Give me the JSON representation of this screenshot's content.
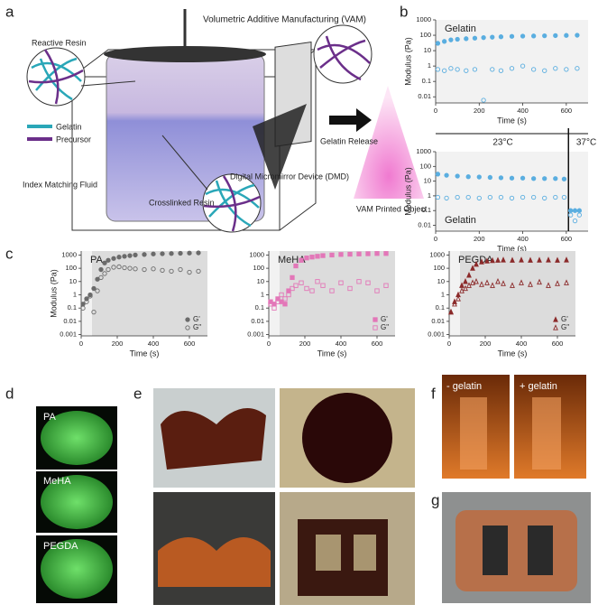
{
  "figure": {
    "panel_labels": [
      "a",
      "b",
      "c",
      "d",
      "e",
      "f",
      "g"
    ],
    "a": {
      "title": "Volumetric Additive Manufacturing (VAM)",
      "reactive_resin": "Reactive Resin",
      "gelatin": "Gelatin",
      "precursor": "Precursor",
      "index_fluid": "Index Matching Fluid",
      "crosslinked": "Crosslinked Resin",
      "dmd": "Digital Micromirror Device (DMD)",
      "release": "Gelatin Release",
      "printed": "VAM Printed Object"
    },
    "d": {
      "labels": [
        "PA",
        "MeHA",
        "PEGDA"
      ]
    },
    "f": {
      "labels": [
        "- gelatin",
        "+ gelatin"
      ]
    }
  },
  "chart_data": [
    {
      "type": "scatter",
      "title": "Gelatin",
      "xlabel": "Time (s)",
      "ylabel": "Modulus (Pa)",
      "log_y": true,
      "xlim": [
        0,
        700
      ],
      "xticks": [
        0,
        200,
        400,
        600
      ],
      "ylim": [
        0.004,
        1000
      ],
      "yticks": [
        0.01,
        0.1,
        1,
        10,
        100,
        1000
      ],
      "x": [
        10,
        40,
        70,
        100,
        140,
        180,
        220,
        260,
        300,
        350,
        400,
        450,
        500,
        550,
        600,
        650
      ],
      "series": [
        {
          "name": "G'",
          "color": "#5aaee0",
          "marker": "circle",
          "filled": true,
          "values": [
            30,
            40,
            50,
            55,
            60,
            65,
            70,
            75,
            80,
            85,
            88,
            90,
            92,
            95,
            98,
            100
          ]
        },
        {
          "name": "G''",
          "color": "#5aaee0",
          "marker": "circle",
          "filled": false,
          "values": [
            0.6,
            0.5,
            0.7,
            0.6,
            0.5,
            0.6,
            0.006,
            0.6,
            0.5,
            0.7,
            1,
            0.6,
            0.5,
            0.7,
            0.6,
            0.7
          ]
        }
      ]
    },
    {
      "type": "scatter",
      "title": "Gelatin",
      "xlabel": "Time (s)",
      "ylabel": "Modulus (Pa)",
      "log_y": true,
      "xlim": [
        0,
        700
      ],
      "xticks": [
        0,
        200,
        400,
        600
      ],
      "ylim": [
        0.004,
        1000
      ],
      "yticks": [
        0.01,
        0.1,
        1,
        10,
        100,
        1000
      ],
      "annotations": [
        "23°C",
        "37°C"
      ],
      "vline": 610,
      "x": [
        10,
        50,
        100,
        150,
        200,
        250,
        300,
        350,
        400,
        450,
        500,
        550,
        590,
        620,
        640,
        660
      ],
      "series": [
        {
          "name": "G'",
          "color": "#5aaee0",
          "marker": "circle",
          "filled": true,
          "values": [
            30,
            25,
            22,
            20,
            19,
            18,
            17,
            16,
            16,
            15,
            15,
            15,
            14,
            0.1,
            0.1,
            0.1
          ]
        },
        {
          "name": "G''",
          "color": "#5aaee0",
          "marker": "circle",
          "filled": false,
          "values": [
            0.8,
            0.7,
            0.8,
            0.8,
            0.7,
            0.8,
            0.8,
            0.7,
            0.8,
            0.8,
            0.7,
            0.8,
            0.8,
            0.05,
            0.02,
            0.05
          ]
        }
      ]
    },
    {
      "type": "scatter",
      "title": "PA",
      "xlabel": "Time (s)",
      "ylabel": "Modulus (Pa)",
      "log_y": true,
      "legend": "lower right",
      "shaded_xlim": [
        60,
        700
      ],
      "xlim": [
        0,
        700
      ],
      "xticks": [
        0,
        200,
        400,
        600
      ],
      "ylim": [
        0.0008,
        2000
      ],
      "yticks": [
        0.001,
        0.01,
        0.1,
        1,
        10,
        100,
        1000
      ],
      "x": [
        10,
        30,
        50,
        70,
        90,
        110,
        130,
        150,
        180,
        210,
        240,
        270,
        300,
        350,
        400,
        450,
        500,
        550,
        600,
        650
      ],
      "series": [
        {
          "name": "G'",
          "color": "#6b6b6b",
          "marker": "circle",
          "filled": true,
          "values": [
            0.2,
            0.5,
            1,
            3,
            15,
            80,
            250,
            400,
            550,
            700,
            800,
            900,
            1000,
            1100,
            1200,
            1250,
            1300,
            1350,
            1400,
            1450
          ]
        },
        {
          "name": "G\"",
          "color": "#6b6b6b",
          "marker": "circle",
          "filled": false,
          "values": [
            0.1,
            0.3,
            0.8,
            0.05,
            2,
            20,
            40,
            80,
            120,
            130,
            110,
            100,
            90,
            80,
            90,
            70,
            60,
            80,
            50,
            60
          ]
        }
      ]
    },
    {
      "type": "scatter",
      "title": "MeHA",
      "xlabel": "Time (s)",
      "log_y": true,
      "legend": "lower right",
      "shaded_xlim": [
        60,
        700
      ],
      "xlim": [
        0,
        700
      ],
      "xticks": [
        0,
        200,
        400,
        600
      ],
      "ylim": [
        0.0008,
        2000
      ],
      "yticks": [
        0.001,
        0.01,
        0.1,
        1,
        10,
        100,
        1000
      ],
      "x": [
        10,
        30,
        50,
        70,
        90,
        110,
        130,
        150,
        180,
        210,
        240,
        270,
        300,
        350,
        400,
        450,
        500,
        550,
        600,
        650
      ],
      "series": [
        {
          "name": "G'",
          "color": "#e377b8",
          "marker": "square",
          "filled": true,
          "values": [
            0.3,
            0.2,
            0.5,
            0.3,
            0.2,
            2,
            20,
            150,
            400,
            600,
            700,
            800,
            900,
            1000,
            1100,
            1150,
            1200,
            1250,
            1300,
            1300
          ]
        },
        {
          "name": "G\"",
          "color": "#e377b8",
          "marker": "square",
          "filled": false,
          "values": [
            0.2,
            0.1,
            0.3,
            1,
            0.5,
            1,
            3,
            5,
            8,
            3,
            2,
            10,
            5,
            2,
            8,
            3,
            10,
            8,
            2,
            5
          ]
        }
      ]
    },
    {
      "type": "scatter",
      "title": "PEGDA",
      "xlabel": "Time (s)",
      "log_y": true,
      "legend": "lower right",
      "shaded_xlim": [
        60,
        700
      ],
      "xlim": [
        0,
        700
      ],
      "xticks": [
        0,
        200,
        400,
        600
      ],
      "ylim": [
        0.0008,
        2000
      ],
      "yticks": [
        0.001,
        0.01,
        0.1,
        1,
        10,
        100,
        1000
      ],
      "x": [
        10,
        30,
        50,
        70,
        90,
        110,
        130,
        150,
        180,
        210,
        240,
        270,
        300,
        350,
        400,
        450,
        500,
        550,
        600,
        650
      ],
      "series": [
        {
          "name": "G'",
          "color": "#8b2a2a",
          "marker": "triangle",
          "filled": true,
          "values": [
            0.05,
            0.3,
            1,
            5,
            10,
            30,
            100,
            200,
            300,
            350,
            380,
            400,
            420,
            400,
            420,
            400,
            410,
            420,
            400,
            420
          ]
        },
        {
          "name": "G\"",
          "color": "#8b2a2a",
          "marker": "triangle",
          "filled": false,
          "values": [
            0.05,
            0.2,
            0.5,
            2,
            3,
            5,
            8,
            10,
            6,
            8,
            5,
            10,
            7,
            5,
            8,
            6,
            9,
            5,
            7,
            8
          ]
        }
      ]
    }
  ]
}
